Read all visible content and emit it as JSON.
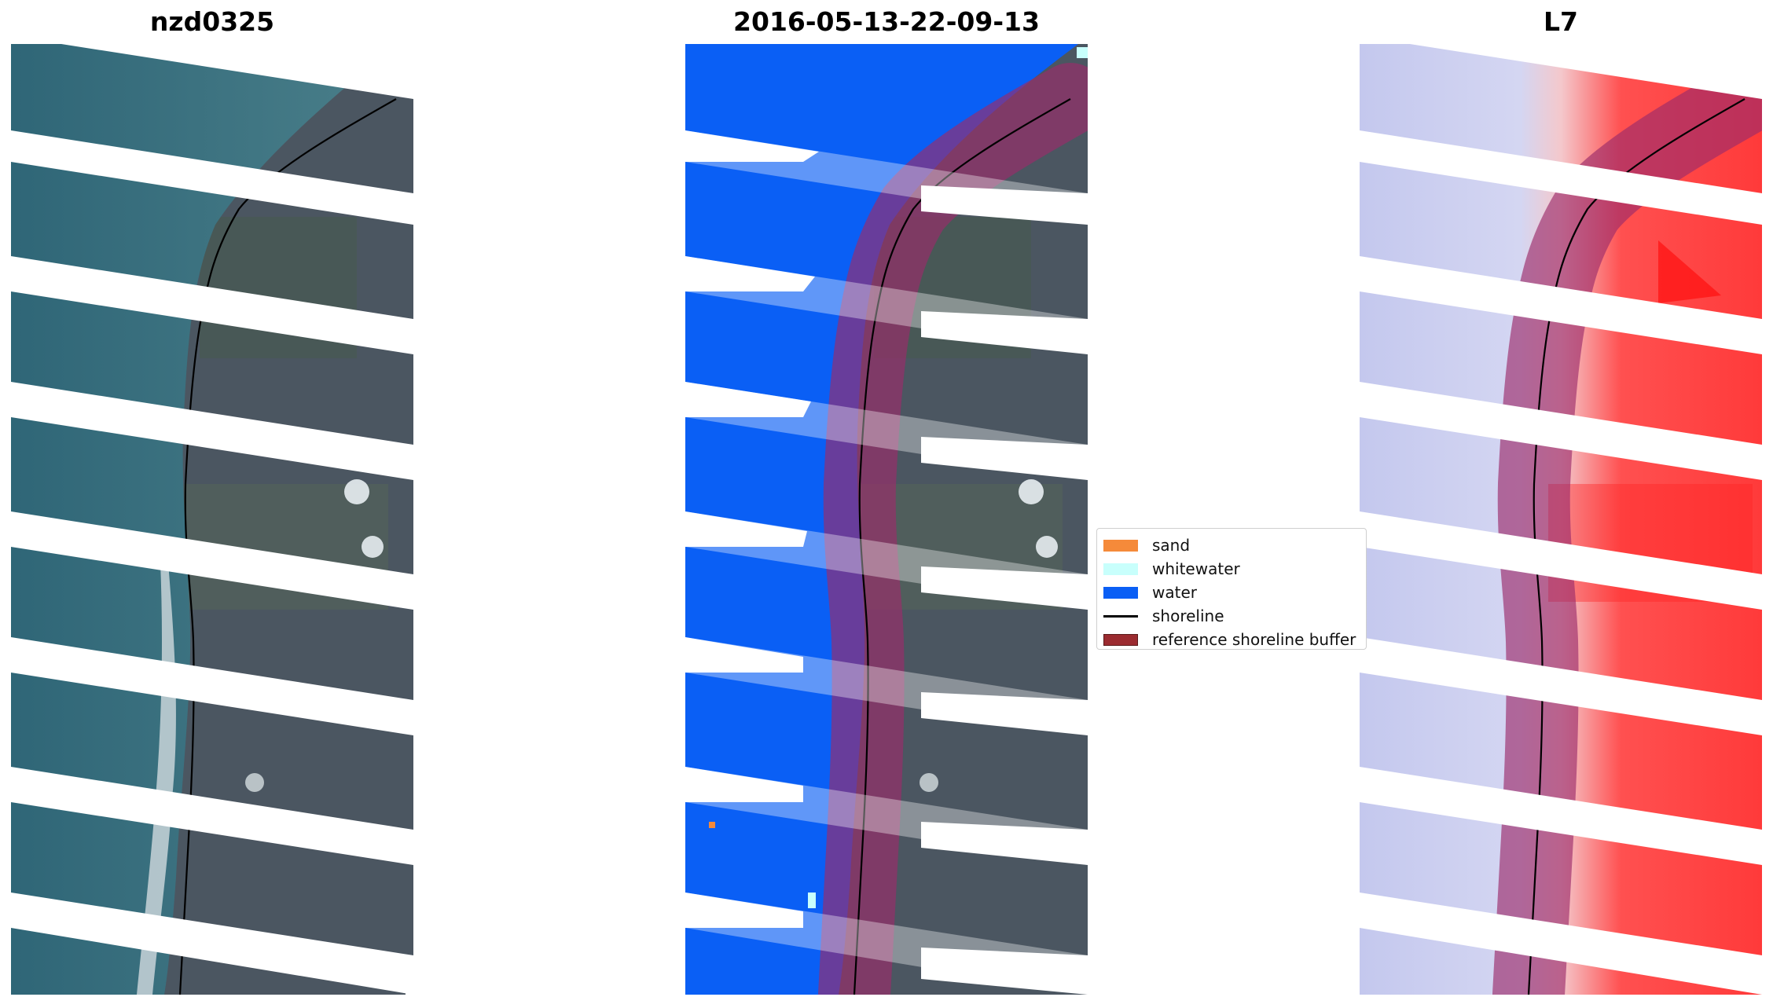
{
  "panels": [
    {
      "title": "nzd0325"
    },
    {
      "title": "2016-05-13-22-09-13"
    },
    {
      "title": "L7"
    }
  ],
  "legend": {
    "items": [
      {
        "label": "sand",
        "color": "#f58a3a",
        "kind": "patch"
      },
      {
        "label": "whitewater",
        "color": "#c8fffc",
        "kind": "patch"
      },
      {
        "label": "water",
        "color": "#0a5ff5",
        "kind": "patch"
      },
      {
        "label": "shoreline",
        "color": "#000000",
        "kind": "line"
      },
      {
        "label": "reference shoreline buffer",
        "color": "#9b2b30",
        "kind": "patch"
      }
    ]
  },
  "colors": {
    "sea_rgb": "#3a6a7a",
    "land_rgb": "#4a5560",
    "water_class": "#0a5ff5",
    "index_low": "#c4c8ee",
    "index_high": "#ff3030",
    "buffer_overlay": "#9b2b6a"
  }
}
